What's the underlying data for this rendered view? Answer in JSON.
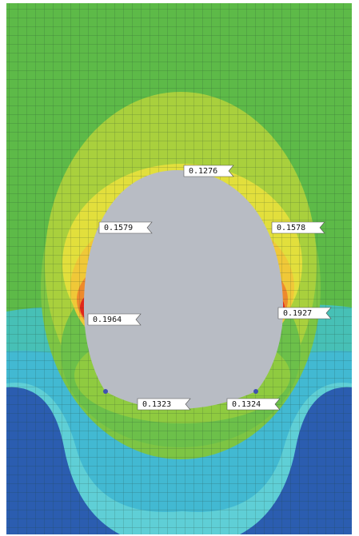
{
  "probes": [
    {
      "label": "0.1276"
    },
    {
      "label": "0.1579"
    },
    {
      "label": "0.1578"
    },
    {
      "label": "0.1964"
    },
    {
      "label": "0.1927"
    },
    {
      "label": "0.1323"
    },
    {
      "label": "0.1324"
    }
  ]
}
